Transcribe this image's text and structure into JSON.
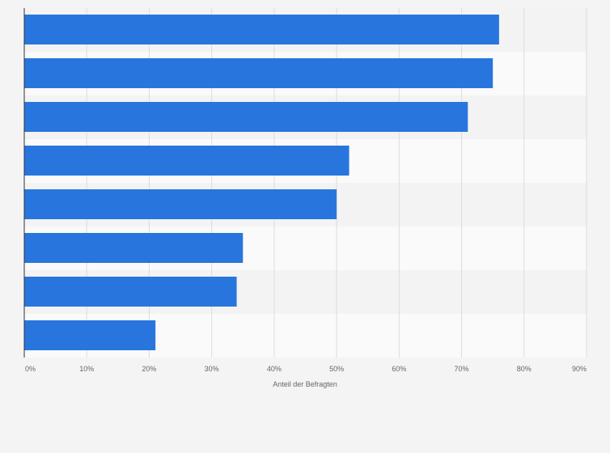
{
  "chart_data": {
    "type": "bar",
    "orientation": "horizontal",
    "categories": [
      "",
      "",
      "",
      "",
      "",
      "",
      "",
      ""
    ],
    "values": [
      76,
      75,
      71,
      52,
      50,
      35,
      34,
      21
    ],
    "xlabel": "Anteil der Befragten",
    "ylabel": "",
    "xlim": [
      0,
      90
    ],
    "xticks": [
      "0%",
      "10%",
      "20%",
      "30%",
      "40%",
      "50%",
      "60%",
      "70%",
      "80%",
      "90%"
    ],
    "grid": true,
    "colors": {
      "bar": "#2876dd",
      "background": "#f4f4f4",
      "band_light": "#fafafa",
      "band_dark": "#f3f3f3",
      "gridline": "#dddddd",
      "axis": "#333333",
      "text": "#666666"
    }
  }
}
